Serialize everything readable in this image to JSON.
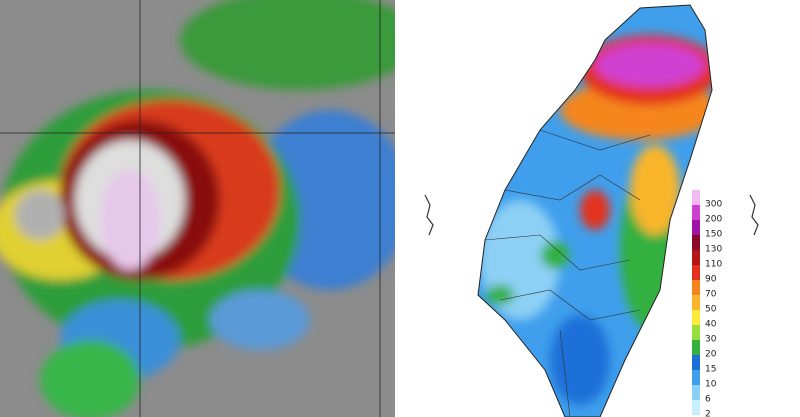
{
  "colorbar": {
    "levels": [
      300,
      200,
      150,
      130,
      110,
      90,
      70,
      50,
      40,
      30,
      20,
      15,
      10,
      6,
      2
    ],
    "colors": [
      "#f2b8f2",
      "#d040d0",
      "#a312a8",
      "#8a0a2a",
      "#b5161a",
      "#e4311f",
      "#f5861e",
      "#f9b52c",
      "#fde93a",
      "#97de3e",
      "#33b040",
      "#1f6fd8",
      "#3f9fec",
      "#8dd0f5",
      "#c6eefc"
    ]
  }
}
